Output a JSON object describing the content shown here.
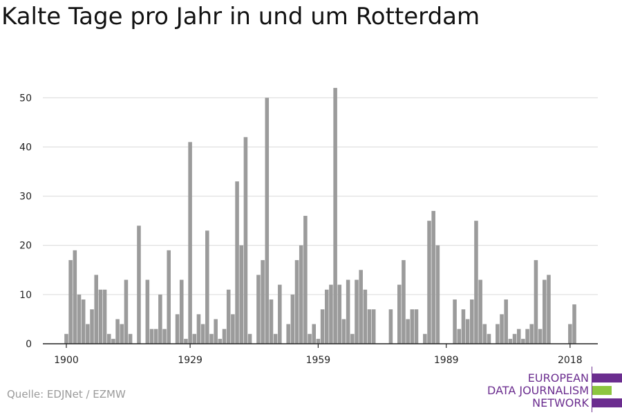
{
  "title": "Kalte Tage pro Jahr in und um Rotterdam",
  "source": "Quelle: EDJNet / EZMW",
  "logo": {
    "line1": "EUROPEAN",
    "line2": "DATA JOURNALISM",
    "line3": "NETWORK",
    "colors": {
      "purple": "#6b2d8f",
      "green": "#8dc63f"
    }
  },
  "chart_data": {
    "type": "bar",
    "title": "Kalte Tage pro Jahr in und um Rotterdam",
    "xlabel": "",
    "ylabel": "",
    "x_ticks": [
      1900,
      1929,
      1959,
      1989,
      2018
    ],
    "y_ticks": [
      0,
      10,
      20,
      30,
      40,
      50
    ],
    "ylim": [
      0,
      53
    ],
    "xlim": [
      1894.5,
      2024.5
    ],
    "grid": true,
    "bar_color": "#9b9b9b",
    "years": [
      1900,
      1901,
      1902,
      1903,
      1904,
      1905,
      1906,
      1907,
      1908,
      1909,
      1910,
      1911,
      1912,
      1913,
      1914,
      1915,
      1916,
      1917,
      1918,
      1919,
      1920,
      1921,
      1922,
      1923,
      1924,
      1925,
      1926,
      1927,
      1928,
      1929,
      1930,
      1931,
      1932,
      1933,
      1934,
      1935,
      1936,
      1937,
      1938,
      1939,
      1940,
      1941,
      1942,
      1943,
      1944,
      1945,
      1946,
      1947,
      1948,
      1949,
      1950,
      1951,
      1952,
      1953,
      1954,
      1955,
      1956,
      1957,
      1958,
      1959,
      1960,
      1961,
      1962,
      1963,
      1964,
      1965,
      1966,
      1967,
      1968,
      1969,
      1970,
      1971,
      1972,
      1973,
      1974,
      1975,
      1976,
      1977,
      1978,
      1979,
      1980,
      1981,
      1982,
      1983,
      1984,
      1985,
      1986,
      1987,
      1988,
      1989,
      1990,
      1991,
      1992,
      1993,
      1994,
      1995,
      1996,
      1997,
      1998,
      1999,
      2000,
      2001,
      2002,
      2003,
      2004,
      2005,
      2006,
      2007,
      2008,
      2009,
      2010,
      2011,
      2012,
      2013,
      2014,
      2015,
      2016,
      2017,
      2018,
      2019,
      2020,
      2021,
      2022
    ],
    "values": [
      2,
      17,
      19,
      10,
      9,
      4,
      7,
      14,
      11,
      11,
      2,
      1,
      5,
      4,
      13,
      2,
      0,
      24,
      0,
      13,
      3,
      3,
      10,
      3,
      19,
      0,
      6,
      13,
      1,
      41,
      2,
      6,
      4,
      23,
      2,
      5,
      1,
      3,
      11,
      6,
      33,
      20,
      42,
      2,
      0,
      14,
      17,
      50,
      9,
      2,
      12,
      0,
      4,
      10,
      17,
      20,
      26,
      2,
      4,
      1,
      7,
      11,
      12,
      52,
      12,
      5,
      13,
      2,
      13,
      15,
      11,
      7,
      7,
      0,
      0,
      0,
      7,
      0,
      12,
      17,
      5,
      7,
      7,
      0,
      2,
      25,
      27,
      20,
      0,
      0,
      0,
      9,
      3,
      7,
      5,
      9,
      25,
      13,
      4,
      2,
      0,
      4,
      6,
      9,
      1,
      2,
      3,
      1,
      3,
      4,
      17,
      3,
      13,
      14,
      0,
      0,
      0,
      0,
      4,
      8,
      0,
      0,
      0
    ]
  }
}
